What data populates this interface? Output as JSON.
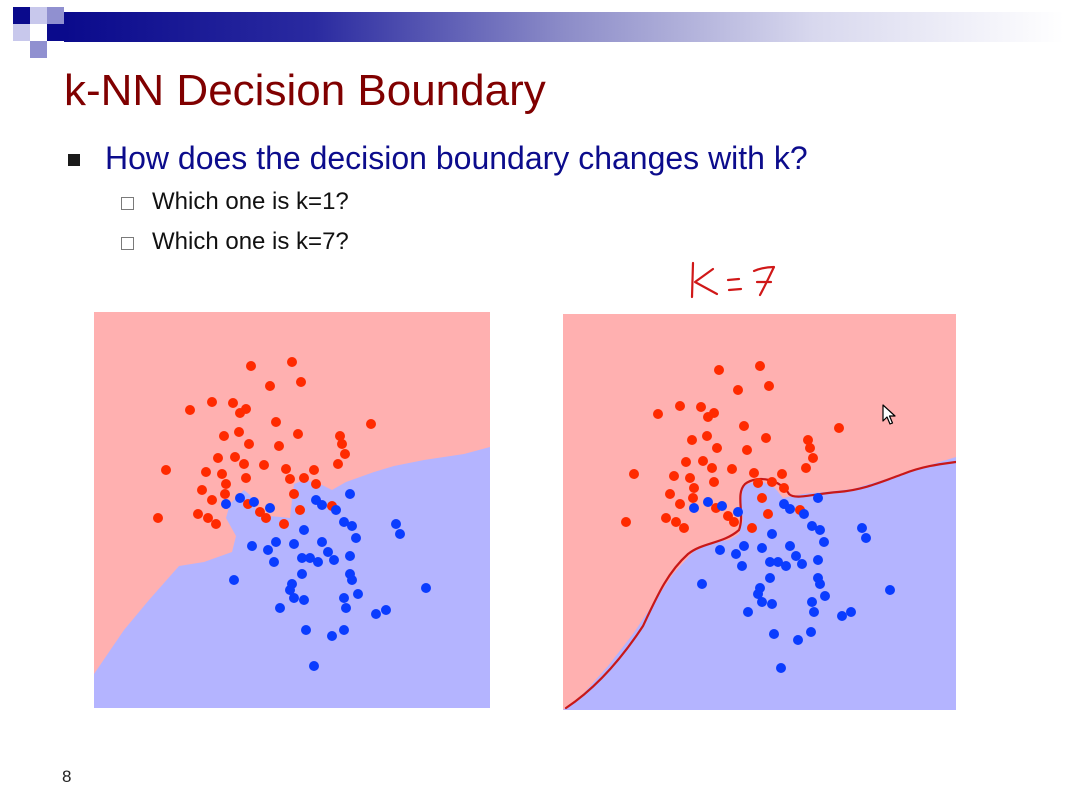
{
  "slide": {
    "title": "k-NN Decision Boundary",
    "question": "How does the decision boundary changes with k?",
    "sub_items": [
      "Which one is k=1?",
      "Which one is k=7?"
    ],
    "annotation": "k=7",
    "slide_number": "8"
  },
  "colors": {
    "title": "#800000",
    "question": "#0c0c8c",
    "red_region": "#ffb0b0",
    "blue_region": "#b4b4ff",
    "red_point": "#ff2a00",
    "blue_point": "#0a3cff",
    "ink": "#d01818"
  },
  "icons": [
    "square-bullet-icon",
    "checkbox-bullet-icon",
    "mouse-cursor-icon"
  ]
}
